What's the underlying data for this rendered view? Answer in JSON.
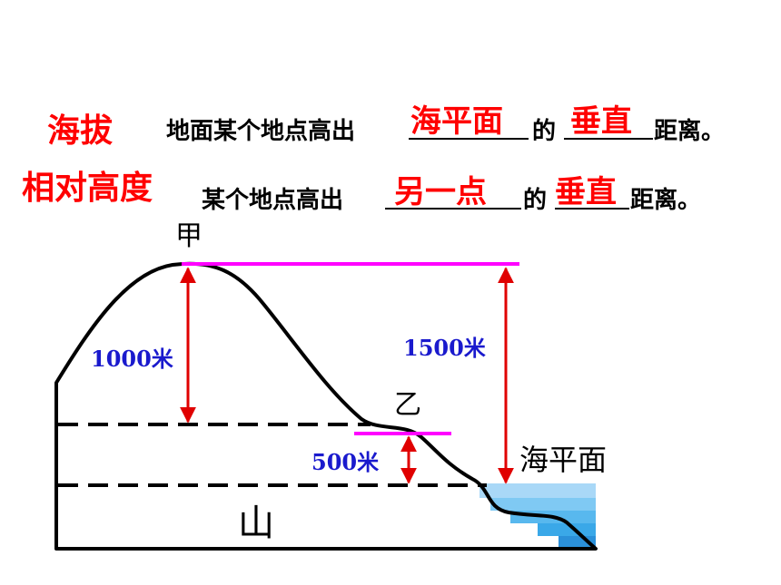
{
  "definitions": {
    "altitude": {
      "term": "海拔",
      "text_before": "地面某个地点高出",
      "answer1": "海平面",
      "text_middle": "的",
      "answer2": "垂直",
      "text_after": "距离。"
    },
    "relative_height": {
      "term": "相对高度",
      "text_before": "某个地点高出",
      "answer1": "另一点",
      "text_middle": "的",
      "answer2": "垂直",
      "text_after": "距离。"
    }
  },
  "diagram": {
    "peak_label": "甲",
    "point_b_label": "乙",
    "sea_level_label": "海平面",
    "mountain_label": "山",
    "height_jia_yi": "1000米",
    "height_jia_sea": "1500米",
    "height_yi_sea": "500米",
    "colors": {
      "outline": "#000000",
      "level_line": "#ff00ff",
      "arrow": "#e00000",
      "value_text": "#1a1acd",
      "water": "#5bbcf0"
    }
  }
}
